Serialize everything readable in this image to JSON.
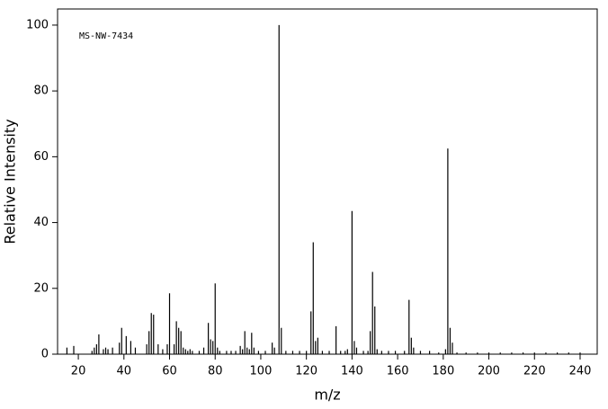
{
  "chart_data": {
    "type": "stem",
    "annotation": "MS-NW-7434",
    "x_label": "m/z",
    "y_label": "Relative Intensity",
    "x": [
      15,
      18,
      26,
      27,
      28,
      29,
      31,
      32,
      33,
      35,
      38,
      39,
      41,
      43,
      45,
      50,
      51,
      52,
      53,
      55,
      57,
      59,
      60,
      62,
      63,
      64,
      65,
      66,
      67,
      68,
      69,
      70,
      73,
      75,
      77,
      78,
      79,
      80,
      81,
      82,
      85,
      87,
      89,
      91,
      92,
      93,
      94,
      95,
      96,
      97,
      99,
      102,
      105,
      106,
      108,
      109,
      111,
      114,
      117,
      120,
      122,
      123,
      124,
      125,
      127,
      130,
      133,
      135,
      137,
      138,
      140,
      141,
      142,
      145,
      147,
      148,
      149,
      150,
      151,
      153,
      156,
      159,
      163,
      165,
      166,
      167,
      170,
      174,
      178,
      181,
      182,
      183,
      184,
      186,
      190,
      195,
      200,
      205,
      210,
      215,
      220,
      225,
      230,
      235,
      240
    ],
    "values": [
      2,
      2.5,
      1,
      2,
      3,
      6,
      1.5,
      2,
      1.5,
      2,
      3.5,
      8,
      5.5,
      4,
      2,
      3,
      7,
      12.5,
      12,
      3,
      1.5,
      3,
      18.5,
      3,
      10,
      8,
      7,
      2,
      1.5,
      1,
      1.5,
      1,
      1,
      2,
      9.5,
      4.5,
      4,
      21.5,
      2,
      1,
      1,
      1,
      1,
      2.5,
      1.5,
      7,
      2,
      1.5,
      6.5,
      2,
      1,
      1,
      3.5,
      2,
      100,
      8,
      1,
      1,
      1,
      1,
      13,
      34,
      4,
      5,
      1,
      1,
      8.5,
      1,
      1,
      1.5,
      43.5,
      4,
      2,
      1,
      1,
      7,
      25,
      14.5,
      1.5,
      1,
      1,
      1,
      1,
      16.5,
      5,
      2,
      1,
      1,
      0.5,
      1.5,
      62.5,
      8,
      3.5,
      0.5,
      0.5,
      0.5,
      0.5,
      0.5,
      0.5,
      0.5,
      0.5,
      0.5,
      0.5,
      0.5,
      0.5
    ],
    "color": "#000000",
    "xlim": [
      10.9,
      247.5
    ],
    "ylim": [
      0,
      104.9
    ],
    "xticks": [
      20,
      40,
      60,
      80,
      100,
      120,
      140,
      160,
      180,
      200,
      220,
      240
    ],
    "yticks": [
      0,
      20,
      40,
      60,
      80,
      100
    ]
  }
}
